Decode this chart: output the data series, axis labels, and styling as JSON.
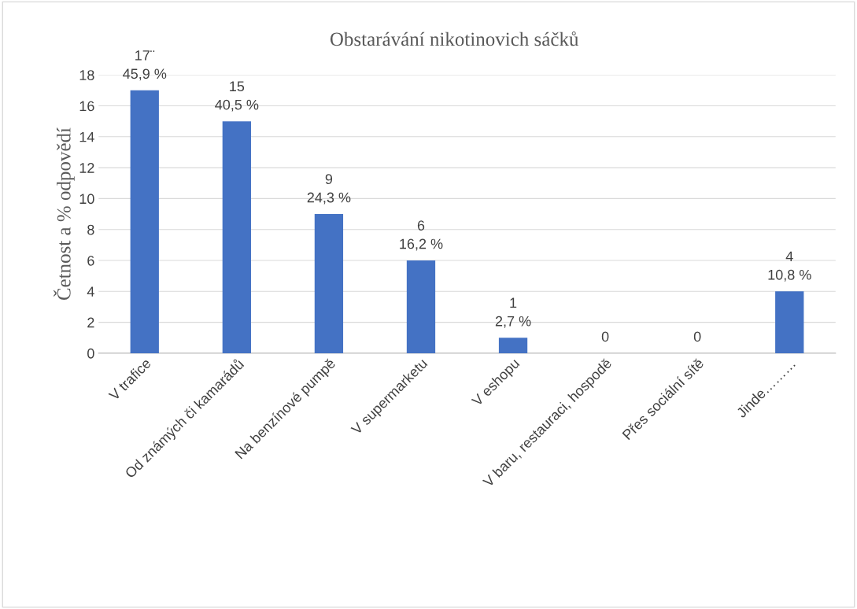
{
  "chart_data": {
    "type": "bar",
    "title": "Obstarávání nikotinovich sáčků",
    "ylabel": "Četnost a % odpovědí",
    "categories": [
      "V trafice",
      "Od známých či kamarádů",
      "Na benzínové pumpě",
      "V supermarketu",
      "V eshopu",
      "V baru, restauraci, hospodě",
      "Přes sociální sítě",
      "Jinde………"
    ],
    "values": [
      17,
      15,
      9,
      6,
      1,
      0,
      0,
      4
    ],
    "value_labels": [
      "17¨\n45,9 %",
      "15\n40,5 %",
      "9\n24,3 %",
      "6\n16,2 %",
      "1\n2,7 %",
      "0",
      "0",
      "4\n10,8 %"
    ],
    "color": "#4472c4",
    "ylim": [
      0,
      18
    ],
    "yticks": [
      0,
      2,
      4,
      6,
      8,
      10,
      12,
      14,
      16,
      18
    ],
    "grid": "y",
    "legend": false
  }
}
